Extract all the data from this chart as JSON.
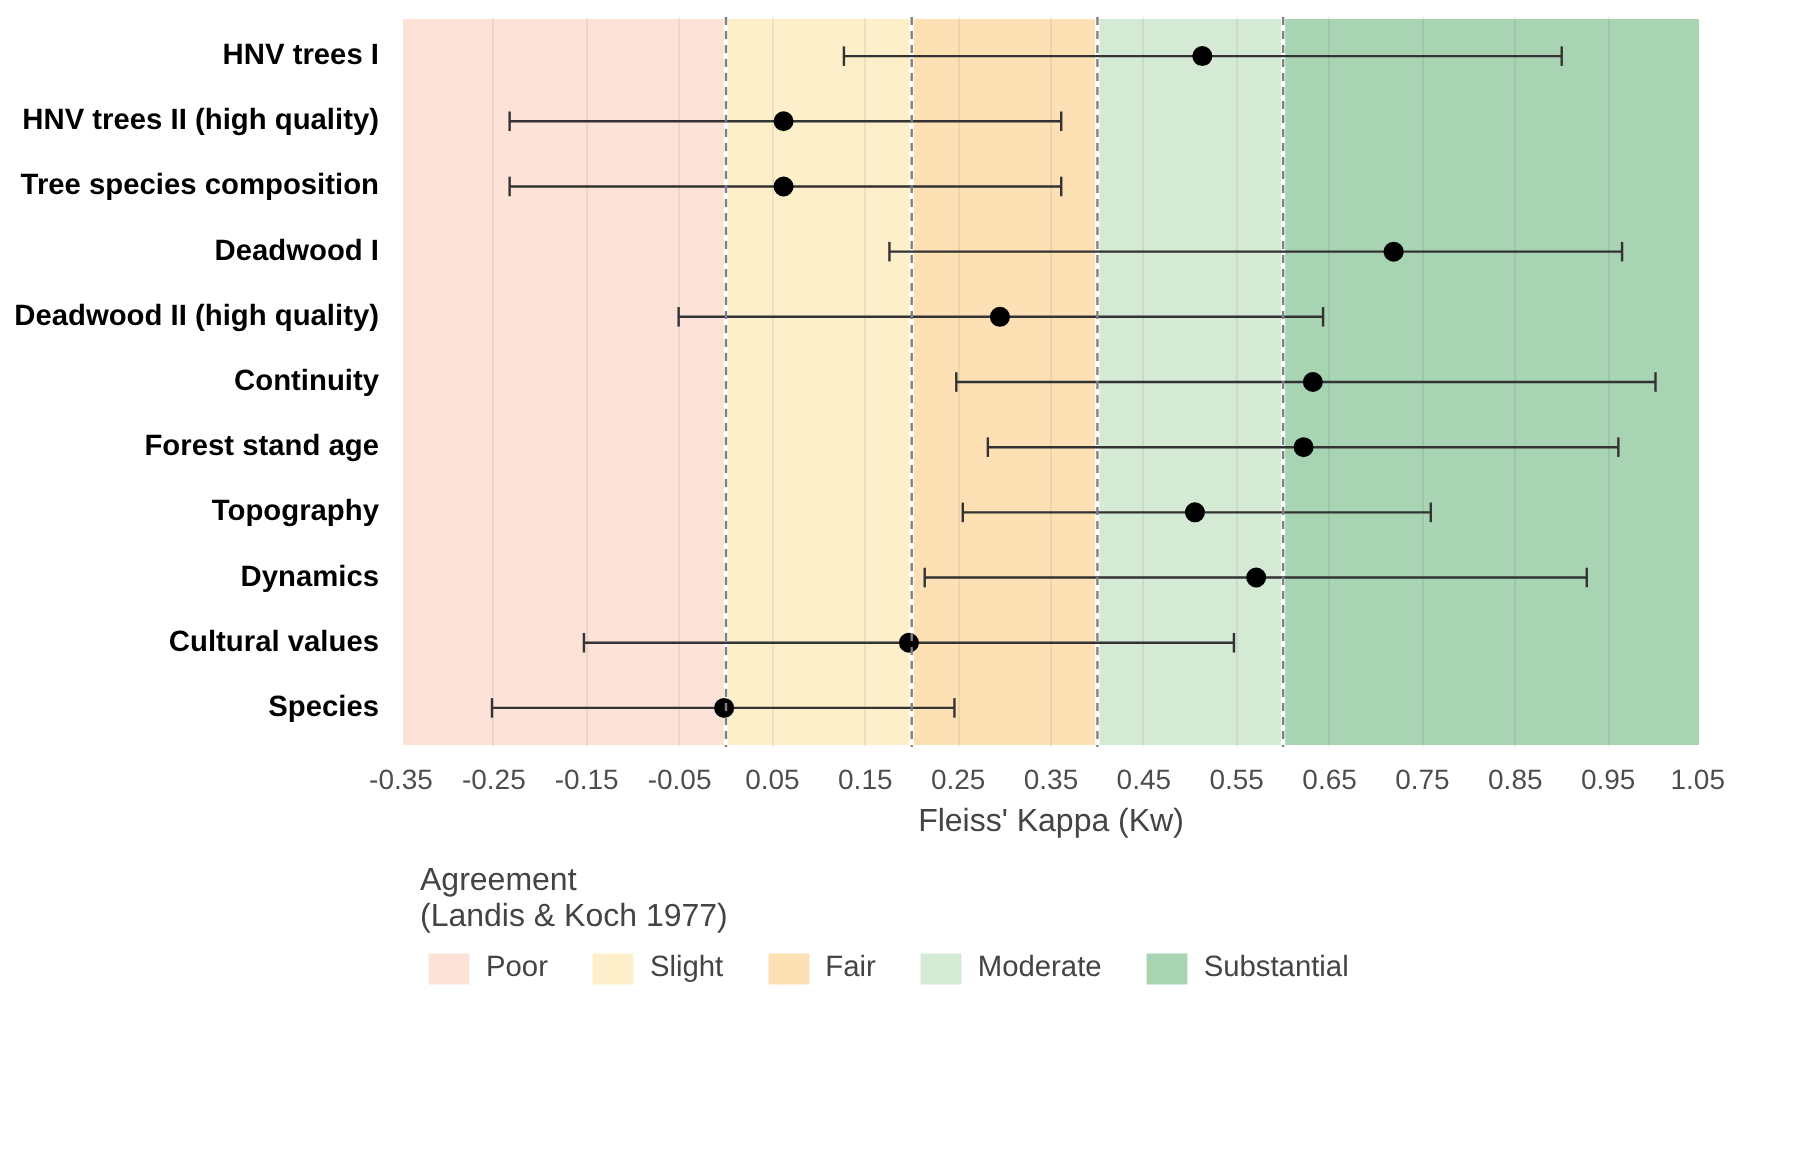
{
  "chart_data": {
    "type": "scatter",
    "orientation": "horizontal",
    "xlabel": "Fleiss' Kappa (Kw)",
    "legend_title": "Agreement\n(Landis & Koch 1977)",
    "legend": "bottom",
    "grid": "x",
    "marker": "circle",
    "categories": [
      "HNV trees I",
      "HNV trees II (high quality)",
      "Tree species composition",
      "Deadwood I",
      "Deadwood II (high quality)",
      "Continuity",
      "Forest stand age",
      "Topography",
      "Dynamics",
      "Cultural values",
      "Species"
    ],
    "series": [
      {
        "color": "#000000",
        "values": [
          0.513,
          0.062,
          0.062,
          0.719,
          0.295,
          0.632,
          0.622,
          0.505,
          0.571,
          0.197,
          -0.002
        ],
        "errors": [
          [
            0.127,
            0.9
          ],
          [
            -0.233,
            0.361
          ],
          [
            -0.233,
            0.361
          ],
          [
            0.176,
            0.965
          ],
          [
            -0.051,
            0.643
          ],
          [
            0.248,
            1.001
          ],
          [
            0.282,
            0.961
          ],
          [
            0.255,
            0.759
          ],
          [
            0.214,
            0.927
          ],
          [
            -0.153,
            0.547
          ],
          [
            -0.252,
            0.246
          ]
        ]
      }
    ],
    "xlim": [
      -0.35,
      1.05
    ],
    "xticks": [
      -0.35,
      -0.25,
      -0.15,
      -0.05,
      0.05,
      0.15,
      0.25,
      0.35,
      0.45,
      0.55,
      0.65,
      0.75,
      0.85,
      0.95,
      1.05
    ],
    "bands": [
      {
        "axis": "x",
        "from": -0.35,
        "to": 0,
        "label": "Poor",
        "color": "#fde3d7"
      },
      {
        "axis": "x",
        "from": 0,
        "to": 0.2,
        "label": "Slight",
        "color": "#fdefc9"
      },
      {
        "axis": "x",
        "from": 0.2,
        "to": 0.4,
        "label": "Fair",
        "color": "#fde0b4"
      },
      {
        "axis": "x",
        "from": 0.4,
        "to": 0.6,
        "label": "Moderate",
        "color": "#d5ead4"
      },
      {
        "axis": "x",
        "from": 0.6,
        "to": 1.05,
        "label": "Substantial",
        "color": "#a8d4b4"
      }
    ],
    "ref_lines": [
      {
        "axis": "x",
        "value": 0,
        "color": "#808080",
        "line_style": "dashed"
      },
      {
        "axis": "x",
        "value": 0.2,
        "color": "#808080",
        "line_style": "dashed"
      },
      {
        "axis": "x",
        "value": 0.4,
        "color": "#808080",
        "line_style": "dashed"
      },
      {
        "axis": "x",
        "value": 0.6,
        "color": "#808080",
        "line_style": "dashed"
      }
    ]
  }
}
